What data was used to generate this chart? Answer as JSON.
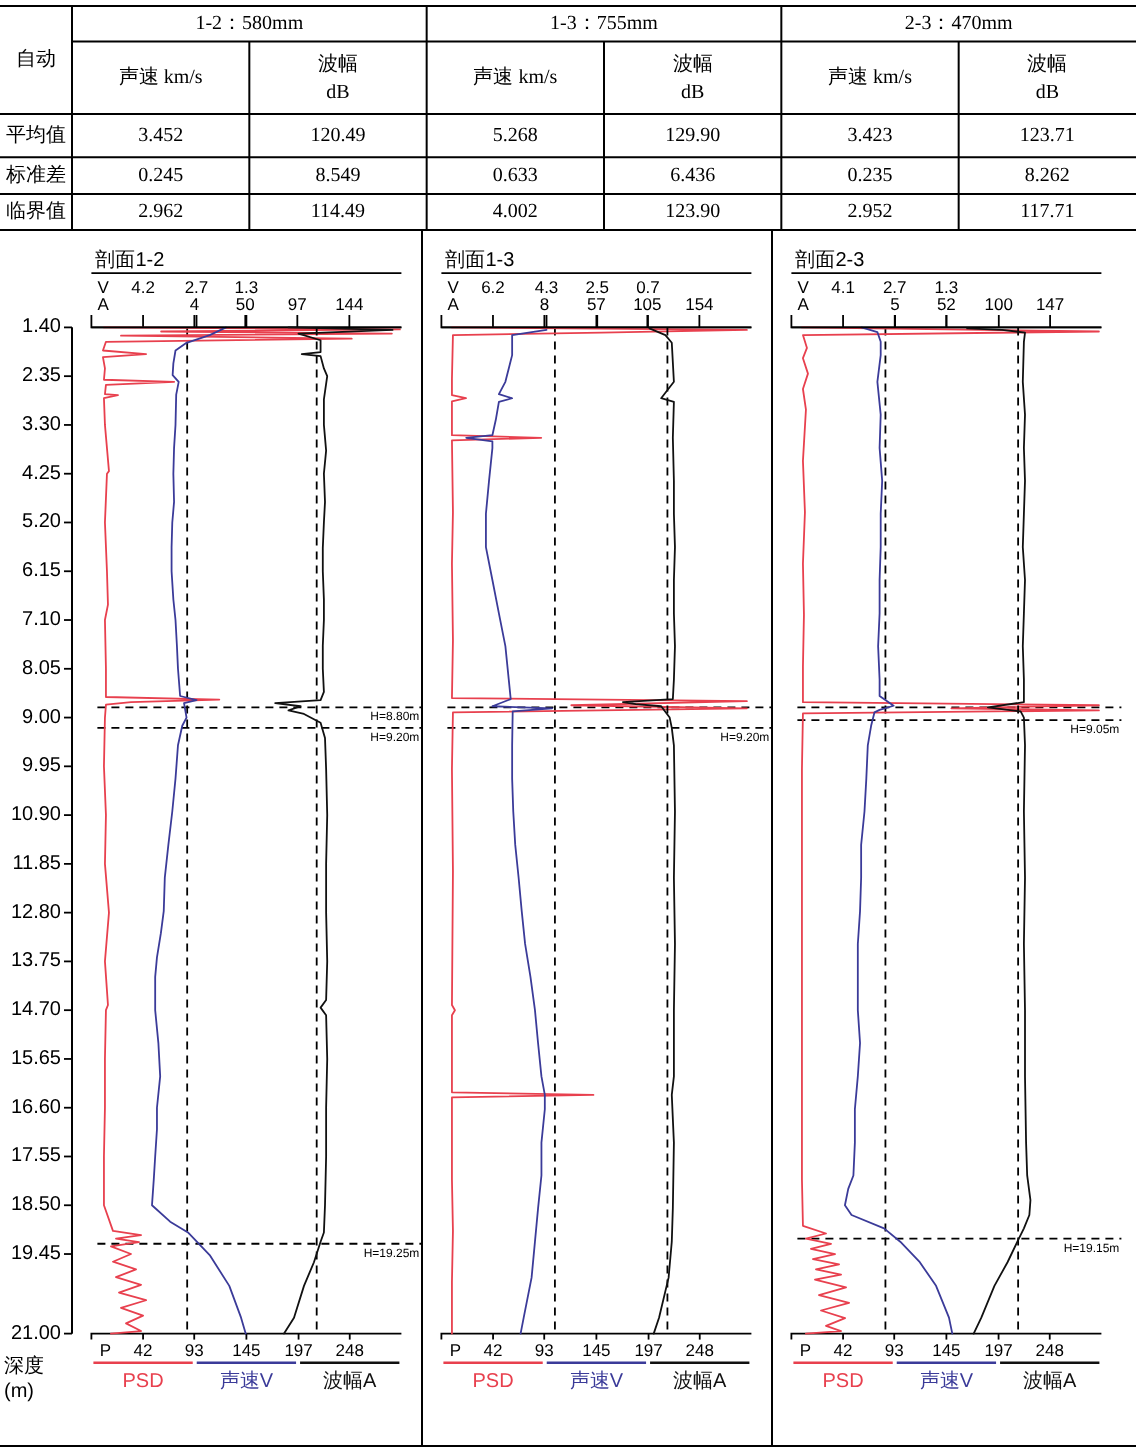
{
  "chart_data": [
    {
      "type": "other",
      "annotations": [
        "自动",
        "1-2：580mm",
        "1-3：755mm",
        "2-3：470mm",
        "声速 km/s",
        "波幅\ndB",
        "声速 km/s",
        "波幅\ndB",
        "声速 km/s",
        "波幅\ndB",
        "平均值",
        "3.452",
        "120.49",
        "5.268",
        "129.90",
        "3.423",
        "123.71",
        "标准差",
        "0.245",
        "8.549",
        "0.633",
        "6.436",
        "0.235",
        "8.262",
        "临界值",
        "2.962",
        "114.49",
        "4.002",
        "123.90",
        "2.952",
        "117.71"
      ]
    },
    {
      "type": "line",
      "title": "剖面1-2",
      "xlabel": "P",
      "x2label": "V",
      "ylabel": "深度\n(m)",
      "legend": "bottom",
      "xlim": [
        -9.5,
        299.5
      ],
      "xticks": [
        42,
        93,
        145,
        197,
        248
      ],
      "x2lim": [
        5.65,
        -3.05
      ],
      "x2ticks": [
        4.2,
        2.7,
        1.3
      ],
      "ylim": [
        21.0,
        1.4
      ],
      "yticks": [
        {
          "value": 1.4,
          "label": "1.40"
        },
        2.35,
        {
          "value": 3.3,
          "label": "3.30"
        },
        4.25,
        {
          "value": 5.2,
          "label": "5.20"
        },
        6.15,
        {
          "value": 7.1,
          "label": "7.10"
        },
        8.05,
        {
          "value": 9.0,
          "label": "9.00"
        },
        9.95,
        {
          "value": 10.9,
          "label": "10.90"
        },
        11.85,
        {
          "value": 12.8,
          "label": "12.80"
        },
        13.75,
        {
          "value": 14.7,
          "label": "14.70"
        },
        15.65,
        {
          "value": 16.6,
          "label": "16.60"
        },
        17.55,
        {
          "value": 18.5,
          "label": "18.50"
        },
        19.45,
        {
          "value": 21.0,
          "label": "21.00"
        }
      ],
      "ref_lines": [
        {
          "axis": "x2",
          "value": 2.962,
          "color": "#000000",
          "line_style": "dashed"
        },
        {
          "axis": "y",
          "value": 8.8,
          "label": "H=8.80m",
          "color": "#000000",
          "line_style": "dashed"
        },
        {
          "axis": "y",
          "value": 9.2,
          "label": "H=9.20m",
          "color": "#000000",
          "line_style": "dashed"
        },
        {
          "axis": "y",
          "value": 19.25,
          "label": "H=19.25m",
          "color": "#000000",
          "line_style": "dashed"
        }
      ],
      "series": [
        {
          "name": "PSD",
          "color": "#e8404e",
          "x": [
            3,
            298,
            60,
            290,
            20,
            250,
            5,
            2,
            45,
            2,
            4,
            3,
            73,
            5,
            4,
            17,
            3,
            4,
            8,
            6,
            4,
            6,
            7,
            4,
            5,
            5,
            118,
            30,
            5,
            4,
            3,
            5,
            4,
            8,
            4,
            7,
            5,
            4,
            4,
            3,
            3,
            12,
            40,
            15,
            38,
            10,
            30,
            12,
            35,
            15,
            40,
            18,
            45,
            20,
            42,
            25,
            40,
            10
          ],
          "values": [
            1.4,
            1.44,
            1.48,
            1.52,
            1.56,
            1.62,
            1.68,
            1.85,
            1.92,
            1.98,
            2.2,
            2.42,
            2.46,
            2.52,
            2.7,
            2.72,
            2.78,
            3.3,
            4.2,
            4.25,
            5.2,
            6.15,
            6.8,
            7.1,
            8.05,
            8.6,
            8.65,
            8.7,
            8.75,
            9.0,
            9.95,
            10.9,
            11.85,
            12.8,
            13.75,
            14.6,
            14.7,
            15.65,
            16.6,
            17.55,
            18.5,
            19.0,
            19.08,
            19.15,
            19.22,
            19.3,
            19.45,
            19.6,
            19.75,
            19.9,
            20.05,
            20.2,
            20.35,
            20.5,
            20.65,
            20.8,
            20.95,
            21.0
          ]
        },
        {
          "name": "声速V",
          "color": "#3b3b99",
          "axis": "x2",
          "x": [
            1.87,
            2.33,
            2.98,
            3.29,
            3.35,
            3.37,
            3.2,
            3.27,
            3.29,
            3.33,
            3.35,
            3.33,
            3.38,
            3.4,
            3.4,
            3.35,
            3.29,
            3.25,
            3.22,
            3.16,
            2.7,
            3.05,
            2.98,
            3.1,
            3.22,
            3.29,
            3.38,
            3.49,
            3.59,
            3.62,
            3.7,
            3.81,
            3.86,
            3.86,
            3.77,
            3.72,
            3.81,
            3.81,
            3.86,
            3.9,
            3.95,
            3.44,
            2.94,
            2.33,
            1.78,
            1.45,
            1.32
          ],
          "values": [
            1.4,
            1.55,
            1.7,
            1.85,
            2.1,
            2.33,
            2.46,
            2.71,
            3.3,
            3.75,
            4.25,
            4.8,
            5.2,
            5.68,
            6.15,
            6.7,
            7.1,
            7.6,
            8.05,
            8.58,
            8.66,
            8.72,
            9.0,
            9.16,
            9.54,
            10.19,
            10.83,
            11.48,
            12.12,
            12.77,
            13.2,
            13.67,
            14.05,
            14.7,
            15.34,
            15.99,
            16.6,
            17.02,
            17.55,
            18.0,
            18.5,
            18.82,
            19.03,
            19.47,
            20.07,
            20.69,
            21.0
          ]
        }
      ]
    },
    {
      "type": "line",
      "xlabel": "A",
      "legend": "bottom",
      "tick_labels": "x",
      "xlim": [
        -89,
        191
      ],
      "xticks": [
        4,
        50,
        97,
        144
      ],
      "ylim": [
        21.0,
        1.4
      ],
      "ref_lines": [
        {
          "axis": "x",
          "value": 114.49,
          "color": "#000000",
          "line_style": "dashed"
        }
      ],
      "series": [
        {
          "name": "波幅A",
          "color": "#111111",
          "x": [
            89,
            183,
            98,
            118,
            118,
            101,
            118,
            121,
            124,
            121,
            121,
            123,
            121,
            122,
            121,
            120,
            120,
            121,
            121,
            120,
            120,
            121,
            118,
            77,
            100,
            89,
            103,
            118,
            122,
            123,
            124,
            123,
            123,
            124,
            123,
            118,
            123,
            124,
            123,
            123,
            122,
            121,
            118,
            112,
            103,
            94,
            85
          ],
          "values": [
            1.4,
            1.45,
            1.52,
            1.65,
            1.88,
            1.92,
            1.96,
            2.2,
            2.35,
            2.8,
            3.3,
            3.8,
            4.25,
            4.8,
            5.2,
            5.7,
            6.15,
            6.7,
            7.1,
            7.6,
            8.05,
            8.5,
            8.66,
            8.72,
            8.78,
            8.86,
            8.93,
            9.1,
            9.4,
            10.0,
            10.9,
            11.85,
            12.8,
            13.75,
            14.5,
            14.65,
            14.8,
            15.65,
            16.6,
            17.55,
            18.5,
            19.03,
            19.21,
            19.61,
            20.07,
            20.69,
            21.0
          ]
        }
      ]
    },
    {
      "type": "line",
      "title": "剖面1-3",
      "xlabel": "P",
      "x2label": "V",
      "legend": "bottom",
      "tick_labels": "x",
      "xlim": [
        -9.5,
        299.5
      ],
      "xticks": [
        42,
        93,
        145,
        197,
        248
      ],
      "x2lim": [
        8.03,
        -2.97
      ],
      "x2ticks": [
        6.2,
        4.3,
        2.5,
        0.7
      ],
      "ylim": [
        21.0,
        1.4
      ],
      "ref_lines": [
        {
          "axis": "x2",
          "value": 4.002,
          "color": "#000000",
          "line_style": "dashed"
        },
        {
          "axis": "y",
          "value": 8.8,
          "color": "#000000",
          "line_style": "dashed"
        },
        {
          "axis": "y",
          "value": 9.2,
          "label": "H=9.20m",
          "color": "#000000",
          "line_style": "dashed"
        }
      ],
      "series": [
        {
          "name": "PSD",
          "color": "#e8404e",
          "x": [
            1,
            295,
            150,
            2,
            1,
            1,
            15,
            1,
            1,
            90,
            1,
            2,
            1,
            2,
            1,
            295,
            120,
            295,
            2,
            1,
            2,
            1,
            4,
            1,
            1,
            142,
            1,
            1,
            2,
            1,
            1
          ],
          "values": [
            1.4,
            1.45,
            1.5,
            1.55,
            2.4,
            2.72,
            2.78,
            2.84,
            3.5,
            3.55,
            3.6,
            5.0,
            6.0,
            7.5,
            8.62,
            8.68,
            8.76,
            8.82,
            8.9,
            10.0,
            12.0,
            14.6,
            14.7,
            14.8,
            16.3,
            16.35,
            16.4,
            18.0,
            19.0,
            20.0,
            21.0
          ]
        },
        {
          "name": "声速V",
          "color": "#3b3b99",
          "axis": "x2",
          "x": [
            4.3,
            5.52,
            5.52,
            5.76,
            5.99,
            5.52,
            5.99,
            6.1,
            6.22,
            7.15,
            6.22,
            6.22,
            6.34,
            6.45,
            6.45,
            6.22,
            5.99,
            5.76,
            5.64,
            5.57,
            6.22,
            4.1,
            5.5,
            5.52,
            5.52,
            5.48,
            5.41,
            5.29,
            5.18,
            5.06,
            4.87,
            4.71,
            4.6,
            4.48,
            4.36,
            4.36,
            4.48,
            4.48,
            4.6,
            4.71,
            4.83,
            5.11,
            5.22
          ],
          "values": [
            1.45,
            1.55,
            1.94,
            2.46,
            2.7,
            2.78,
            2.85,
            3.2,
            3.5,
            3.55,
            3.62,
            3.75,
            4.39,
            5.03,
            5.68,
            6.32,
            6.97,
            7.61,
            8.26,
            8.64,
            8.78,
            8.82,
            8.88,
            9.54,
            10.19,
            10.83,
            11.48,
            12.12,
            12.77,
            13.41,
            14.05,
            14.7,
            15.34,
            15.99,
            16.35,
            16.63,
            17.28,
            17.92,
            18.56,
            19.21,
            19.91,
            20.69,
            21.0
          ]
        }
      ]
    },
    {
      "type": "line",
      "xlabel": "A",
      "legend": "bottom",
      "tick_labels": "x",
      "xlim": [
        -89,
        203
      ],
      "xticks": [
        8,
        57,
        105,
        154
      ],
      "ylim": [
        21.0,
        1.4
      ],
      "ref_lines": [
        {
          "axis": "x",
          "value": 123.9,
          "color": "#000000",
          "line_style": "dashed"
        }
      ],
      "series": [
        {
          "name": "波幅A",
          "color": "#111111",
          "x": [
            107,
            122,
            128,
            130,
            118,
            130,
            129,
            130,
            130,
            131,
            130,
            130,
            131,
            130,
            129,
            82,
            94,
            118,
            126,
            128,
            130,
            131,
            130,
            131,
            130,
            130,
            128,
            130,
            129,
            128,
            125,
            116,
            111
          ],
          "values": [
            1.42,
            1.55,
            1.7,
            2.46,
            2.78,
            2.85,
            3.55,
            4.39,
            5.03,
            5.68,
            6.32,
            6.97,
            7.61,
            8.26,
            8.64,
            8.7,
            8.74,
            8.78,
            9.0,
            9.2,
            9.54,
            10.83,
            12.12,
            13.41,
            14.7,
            15.99,
            16.35,
            17.28,
            18.56,
            19.21,
            19.91,
            20.69,
            21.0
          ]
        }
      ]
    },
    {
      "type": "line",
      "title": "剖面2-3",
      "xlabel": "P",
      "x2label": "V",
      "legend": "bottom",
      "tick_labels": "x",
      "xlim": [
        -9.5,
        299.5
      ],
      "xticks": [
        42,
        93,
        145,
        197,
        248
      ],
      "x2lim": [
        5.5,
        -2.9
      ],
      "x2ticks": [
        4.1,
        2.7,
        1.3
      ],
      "ylim": [
        21.0,
        1.4
      ],
      "ref_lines": [
        {
          "axis": "x2",
          "value": 2.952,
          "color": "#000000",
          "line_style": "dashed"
        },
        {
          "axis": "y",
          "value": 8.8,
          "color": "#000000",
          "line_style": "dashed"
        },
        {
          "axis": "y",
          "value": 9.05,
          "label": "H=9.05m",
          "color": "#000000",
          "line_style": "dashed"
        },
        {
          "axis": "y",
          "value": 19.15,
          "label": "H=19.15m",
          "color": "#000000",
          "line_style": "dashed"
        }
      ],
      "series": [
        {
          "name": "PSD",
          "color": "#e8404e",
          "x": [
            1,
            297,
            2,
            6,
            2,
            7,
            2,
            5,
            2,
            4,
            2,
            3,
            2,
            2,
            297,
            150,
            297,
            2,
            1,
            1,
            1,
            1,
            1,
            2,
            25,
            5,
            30,
            10,
            34,
            12,
            38,
            15,
            40,
            14,
            45,
            18,
            48,
            20,
            44,
            25,
            40,
            5
          ],
          "values": [
            1.4,
            1.48,
            1.55,
            1.8,
            2.0,
            2.3,
            2.6,
            3.0,
            4.0,
            5.0,
            6.0,
            7.0,
            8.0,
            8.7,
            8.76,
            8.82,
            8.86,
            8.92,
            10.0,
            12.0,
            14.0,
            16.0,
            18.0,
            18.9,
            19.05,
            19.15,
            19.25,
            19.35,
            19.45,
            19.55,
            19.65,
            19.75,
            19.85,
            19.95,
            20.1,
            20.25,
            20.4,
            20.55,
            20.7,
            20.85,
            20.95,
            21.0
          ]
        },
        {
          "name": "声速V",
          "color": "#3b3b99",
          "axis": "x2",
          "x": [
            3.6,
            3.17,
            3.08,
            3.08,
            3.17,
            3.08,
            3.11,
            3.04,
            3.08,
            3.08,
            3.11,
            3.11,
            3.15,
            3.11,
            3.11,
            2.73,
            3.11,
            3.25,
            3.34,
            3.43,
            3.47,
            3.52,
            3.61,
            3.61,
            3.64,
            3.7,
            3.7,
            3.7,
            3.64,
            3.7,
            3.78,
            3.78,
            3.82,
            3.96,
            4.05,
            3.87,
            2.99,
            2.55,
            2.02,
            1.58,
            1.23,
            1.14
          ],
          "values": [
            1.4,
            1.49,
            1.68,
            1.94,
            2.46,
            3.1,
            3.75,
            4.39,
            5.03,
            5.68,
            6.32,
            6.97,
            7.61,
            8.26,
            8.58,
            8.77,
            8.85,
            8.9,
            9.16,
            9.54,
            10.19,
            10.83,
            11.48,
            12.12,
            12.77,
            13.41,
            14.05,
            14.7,
            15.34,
            15.99,
            16.63,
            17.28,
            17.92,
            18.18,
            18.5,
            18.69,
            18.95,
            19.21,
            19.61,
            20.07,
            20.69,
            21.0
          ]
        }
      ]
    },
    {
      "type": "line",
      "xlabel": "A",
      "legend": "bottom",
      "tick_labels": "x",
      "xlim": [
        -90,
        194
      ],
      "xticks": [
        5,
        52,
        100,
        147
      ],
      "ylim": [
        21.0,
        1.4
      ],
      "ref_lines": [
        {
          "axis": "x",
          "value": 117.71,
          "color": "#000000",
          "line_style": "dashed"
        }
      ],
      "series": [
        {
          "name": "波幅A",
          "color": "#111111",
          "x": [
            71,
            103,
            124,
            123,
            122,
            124,
            123,
            124,
            123,
            122,
            124,
            123,
            122,
            123,
            123,
            90,
            120,
            123,
            124,
            123,
            124,
            123,
            124,
            124,
            125,
            126,
            129,
            128,
            123,
            117,
            108,
            96,
            84,
            77
          ],
          "values": [
            1.42,
            1.45,
            1.5,
            1.68,
            2.46,
            3.1,
            3.75,
            4.39,
            5.03,
            5.68,
            6.32,
            6.97,
            7.61,
            8.26,
            8.7,
            8.8,
            8.88,
            9.0,
            9.54,
            10.83,
            12.12,
            13.41,
            14.7,
            15.99,
            17.28,
            17.92,
            18.4,
            18.69,
            18.95,
            19.21,
            19.61,
            20.07,
            20.69,
            21.0
          ]
        }
      ]
    }
  ]
}
